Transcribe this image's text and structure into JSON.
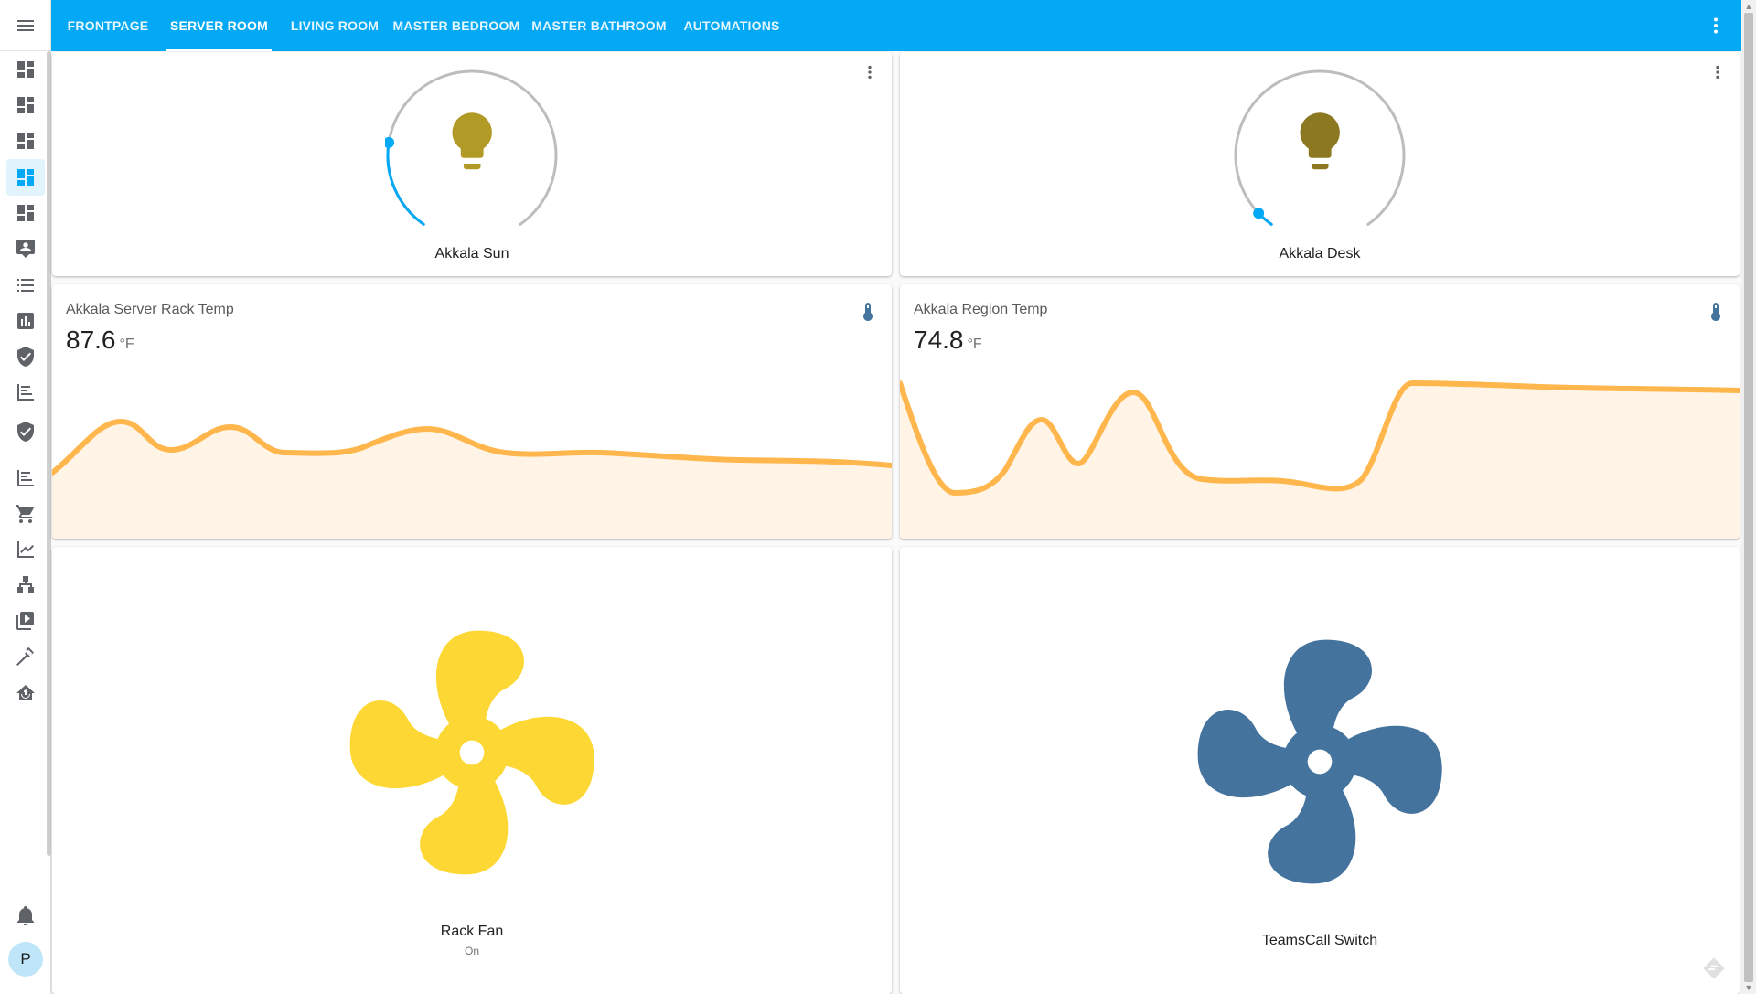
{
  "header": {
    "tabs": [
      {
        "label": "FRONTPAGE",
        "active": false
      },
      {
        "label": "SERVER ROOM",
        "active": true
      },
      {
        "label": "LIVING ROOM",
        "active": false
      },
      {
        "label": "MASTER BEDROOM",
        "active": false
      },
      {
        "label": "MASTER BATHROOM",
        "active": false
      },
      {
        "label": "AUTOMATIONS",
        "active": false
      }
    ],
    "menu_icon": "dots-vertical-icon",
    "accent_color": "#03a9f4"
  },
  "sidebar": {
    "menu_icon": "menu-icon",
    "items": [
      {
        "icon": "dashboard-icon",
        "active": false
      },
      {
        "icon": "dashboard-icon",
        "active": false
      },
      {
        "icon": "dashboard-icon",
        "active": false
      },
      {
        "icon": "dashboard-icon",
        "active": true
      },
      {
        "icon": "dashboard-icon",
        "active": false
      },
      {
        "icon": "account-box-icon",
        "active": false
      },
      {
        "icon": "list-icon",
        "active": false
      },
      {
        "icon": "chart-box-icon",
        "active": false
      },
      {
        "icon": "shield-check-icon",
        "active": false
      },
      {
        "icon": "timeline-icon",
        "active": false
      },
      {
        "icon": "shield-check-icon",
        "active": false
      },
      {
        "icon": "timeline-icon",
        "active": false
      },
      {
        "icon": "cart-icon",
        "active": false
      },
      {
        "icon": "chart-line-icon",
        "active": false
      },
      {
        "icon": "sitemap-icon",
        "active": false
      },
      {
        "icon": "play-box-icon",
        "active": false
      },
      {
        "icon": "hammer-icon",
        "active": false
      },
      {
        "icon": "home-automation-icon",
        "active": false
      }
    ],
    "notifications_icon": "bell-icon",
    "user_initial": "P",
    "avatar_color": "#bfe5f9"
  },
  "cards": {
    "light_1": {
      "name": "Akkala Sun",
      "brightness_fraction": 0.22,
      "bulb_color": "#b29a27",
      "icon": "lightbulb-icon"
    },
    "light_2": {
      "name": "Akkala Desk",
      "brightness_fraction": 0.04,
      "bulb_color": "#8c7821",
      "icon": "lightbulb-icon"
    },
    "sensor_1": {
      "name": "Akkala Server Rack Temp",
      "value": "87.6",
      "unit": "°F",
      "icon": "thermometer-icon"
    },
    "sensor_2": {
      "name": "Akkala Region Temp",
      "value": "74.8",
      "unit": "°F",
      "icon": "thermometer-icon"
    },
    "fan_1": {
      "name": "Rack Fan",
      "state": "On",
      "color": "#fdd835",
      "icon": "fan-icon"
    },
    "fan_2": {
      "name": "TeamsCall Switch",
      "color": "#44739e",
      "icon": "fan-icon"
    }
  },
  "colors": {
    "dial_track": "#bdbdbd",
    "dial_active": "#03a9f4",
    "graph_line": "#ffb74d",
    "graph_fill": "#fff4e5",
    "thermometer": "#44739e"
  }
}
